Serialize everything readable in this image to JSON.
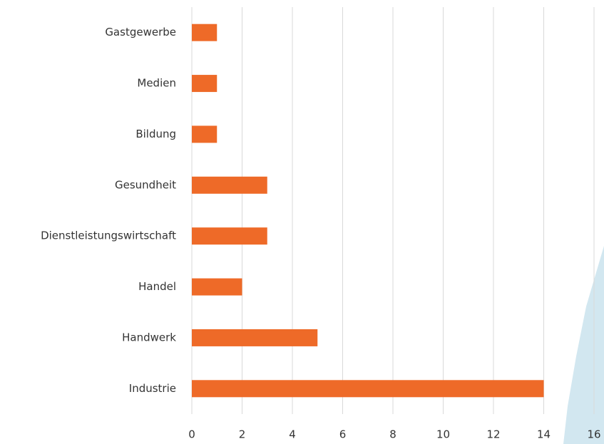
{
  "chart_data": {
    "type": "bar",
    "orientation": "horizontal",
    "categories": [
      "Gastgewerbe",
      "Medien",
      "Bildung",
      "Gesundheit",
      "Dienstleistungswirtschaft",
      "Handel",
      "Handwerk",
      "Industrie"
    ],
    "values": [
      1,
      1,
      1,
      3,
      3,
      2,
      5,
      14
    ],
    "color": "#ee6a28",
    "xlim": [
      0,
      16
    ],
    "xticks": [
      0,
      2,
      4,
      6,
      8,
      10,
      12,
      14,
      16
    ],
    "grid": true
  }
}
